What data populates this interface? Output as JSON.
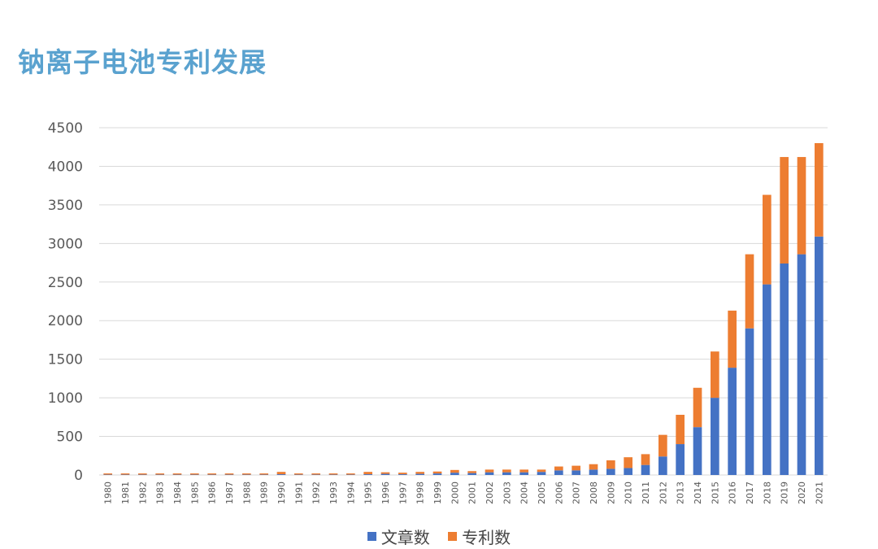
{
  "page": {
    "title": "钠离子电池专利发展"
  },
  "colors": {
    "title": "#5aa2cf",
    "series_articles": "#4472c4",
    "series_patents": "#ed7d31",
    "grid": "#d9d9d9",
    "tick_text": "#595959"
  },
  "chart_data": {
    "type": "bar",
    "stacked": true,
    "title": "",
    "xlabel": "",
    "ylabel": "",
    "ylim": [
      0,
      4500
    ],
    "yticks": [
      0,
      500,
      1000,
      1500,
      2000,
      2500,
      3000,
      3500,
      4000,
      4500
    ],
    "grid": true,
    "legend_position": "bottom",
    "categories": [
      "1980",
      "1981",
      "1982",
      "1983",
      "1984",
      "1985",
      "1986",
      "1987",
      "1988",
      "1989",
      "1990",
      "1991",
      "1992",
      "1993",
      "1994",
      "1995",
      "1996",
      "1997",
      "1998",
      "1999",
      "2000",
      "2001",
      "2002",
      "2003",
      "2004",
      "2005",
      "2006",
      "2007",
      "2008",
      "2009",
      "2010",
      "2011",
      "2012",
      "2013",
      "2014",
      "2015",
      "2016",
      "2017",
      "2018",
      "2019",
      "2020",
      "2021"
    ],
    "series": [
      {
        "name": "文章数",
        "values": [
          5,
          5,
          5,
          5,
          5,
          5,
          5,
          5,
          5,
          5,
          10,
          5,
          5,
          5,
          5,
          10,
          15,
          10,
          15,
          20,
          30,
          25,
          35,
          35,
          35,
          40,
          60,
          60,
          70,
          80,
          90,
          130,
          240,
          400,
          620,
          1000,
          1390,
          1900,
          2470,
          2740,
          2860,
          3090
        ]
      },
      {
        "name": "专利数",
        "values": [
          15,
          15,
          15,
          15,
          15,
          15,
          15,
          15,
          15,
          15,
          30,
          15,
          15,
          15,
          15,
          30,
          20,
          20,
          25,
          25,
          35,
          25,
          35,
          35,
          35,
          30,
          50,
          60,
          70,
          110,
          140,
          140,
          280,
          380,
          510,
          600,
          740,
          960,
          1160,
          1380,
          1260,
          1210
        ]
      }
    ]
  }
}
